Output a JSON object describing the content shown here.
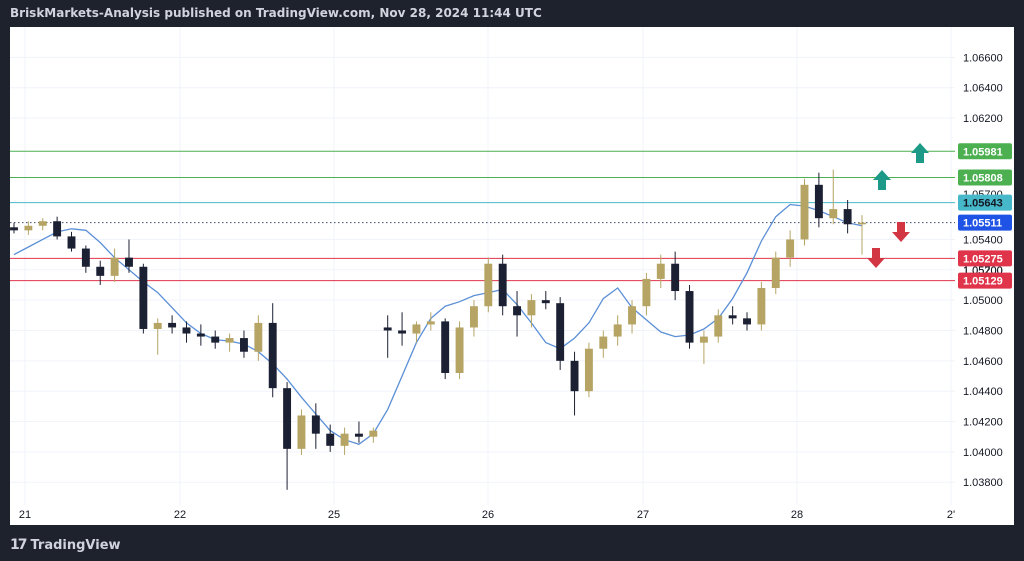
{
  "header": {
    "publisher_line": "BriskMarkets-Analysis published on TradingView.com, Nov 28, 2024 11:44 UTC"
  },
  "footer": {
    "logo_mark": "17",
    "brand": "TradingView"
  },
  "colors": {
    "bull": "#b5a463",
    "bear": "#1c2033",
    "ma": "#5b8fd6",
    "grid": "#f0f3fa",
    "green_line": "#4caf50",
    "cyan_line": "#47b8c9",
    "red_line": "#e0344a",
    "teal_arrow": "#1c9a87",
    "red_arrow": "#d33643",
    "current_badge": "#1e53e5"
  },
  "chart_data": {
    "type": "candlestick",
    "y_axis": {
      "range": [
        1.0365,
        1.068
      ],
      "ticks": [
        "1.06600",
        "1.06400",
        "1.06200",
        "1.05400",
        "1.05200",
        "1.05000",
        "1.04800",
        "1.04600",
        "1.04400",
        "1.04200",
        "1.04000",
        "1.03800"
      ],
      "obscured_tick": "1.05700"
    },
    "x_axis": {
      "ticks": [
        "21",
        "22",
        "25",
        "26",
        "27",
        "28",
        "2'"
      ]
    },
    "levels": [
      {
        "value": 1.05981,
        "label": "1.05981",
        "kind": "resistance"
      },
      {
        "value": 1.05808,
        "label": "1.05808",
        "kind": "resistance"
      },
      {
        "value": 1.05643,
        "label": "1.05643",
        "kind": "pivot"
      },
      {
        "value": 1.05511,
        "label": "1.05511",
        "kind": "current"
      },
      {
        "value": 1.05275,
        "label": "1.05275",
        "kind": "support"
      },
      {
        "value": 1.05129,
        "label": "1.05129",
        "kind": "support"
      }
    ],
    "arrows": [
      {
        "direction": "up",
        "target": 1.05981
      },
      {
        "direction": "up",
        "target": 1.05808
      },
      {
        "direction": "down",
        "target": 1.05275
      },
      {
        "direction": "down",
        "target": 1.05129
      }
    ],
    "moving_average": [
      1.053,
      1.0535,
      1.054,
      1.0545,
      1.0547,
      1.0546,
      1.0538,
      1.0528,
      1.052,
      1.0512,
      1.0505,
      1.0495,
      1.0485,
      1.0478,
      1.0474,
      1.0473,
      1.0471,
      1.0466,
      1.0458,
      1.0448,
      1.0436,
      1.0425,
      1.0414,
      1.0408,
      1.0405,
      1.0412,
      1.0428,
      1.045,
      1.0472,
      1.0488,
      1.0496,
      1.0499,
      1.0503,
      1.0505,
      1.0507,
      1.0497,
      1.0485,
      1.0472,
      1.0468,
      1.0475,
      1.0485,
      1.0501,
      1.0508,
      1.0495,
      1.0487,
      1.0479,
      1.0476,
      1.0477,
      1.0481,
      1.0488,
      1.0501,
      1.0518,
      1.0539,
      1.0555,
      1.0563,
      1.0562,
      1.0559,
      1.0555,
      1.0551,
      1.0549
    ],
    "candles": [
      [
        1.0548,
        1.0551,
        1.0544,
        1.0546
      ],
      [
        1.0546,
        1.0552,
        1.0543,
        1.0549
      ],
      [
        1.0549,
        1.0554,
        1.0546,
        1.0552
      ],
      [
        1.0552,
        1.0555,
        1.054,
        1.0542
      ],
      [
        1.0542,
        1.0545,
        1.0532,
        1.0534
      ],
      [
        1.0534,
        1.0536,
        1.0518,
        1.0522
      ],
      [
        1.0522,
        1.0526,
        1.051,
        1.0516
      ],
      [
        1.0516,
        1.0534,
        1.0512,
        1.0528
      ],
      [
        1.0528,
        1.054,
        1.0518,
        1.0522
      ],
      [
        1.0522,
        1.0524,
        1.0478,
        1.0481
      ],
      [
        1.0481,
        1.0488,
        1.0464,
        1.0485
      ],
      [
        1.0485,
        1.049,
        1.0478,
        1.0482
      ],
      [
        1.0482,
        1.0486,
        1.0472,
        1.0478
      ],
      [
        1.0478,
        1.0484,
        1.047,
        1.0476
      ],
      [
        1.0476,
        1.048,
        1.0468,
        1.0472
      ],
      [
        1.0472,
        1.0478,
        1.0466,
        1.0475
      ],
      [
        1.0475,
        1.048,
        1.0462,
        1.0466
      ],
      [
        1.0466,
        1.049,
        1.046,
        1.0485
      ],
      [
        1.0485,
        1.0498,
        1.0436,
        1.0442
      ],
      [
        1.0442,
        1.0446,
        1.0375,
        1.0402
      ],
      [
        1.0402,
        1.0428,
        1.0398,
        1.0424
      ],
      [
        1.0424,
        1.0432,
        1.0402,
        1.0412
      ],
      [
        1.0412,
        1.0418,
        1.04,
        1.0404
      ],
      [
        1.0404,
        1.0416,
        1.0398,
        1.0412
      ],
      [
        1.0412,
        1.042,
        1.0406,
        1.041
      ],
      [
        1.041,
        1.0416,
        1.0406,
        1.0414
      ],
      [
        1.0482,
        1.049,
        1.0462,
        1.048
      ],
      [
        1.048,
        1.0492,
        1.047,
        1.0478
      ],
      [
        1.0478,
        1.0486,
        1.0472,
        1.0484
      ],
      [
        1.0484,
        1.0492,
        1.048,
        1.0486
      ],
      [
        1.0486,
        1.0488,
        1.0448,
        1.0452
      ],
      [
        1.0452,
        1.0486,
        1.0448,
        1.0482
      ],
      [
        1.0482,
        1.05,
        1.0476,
        1.0496
      ],
      [
        1.0496,
        1.0528,
        1.0492,
        1.0524
      ],
      [
        1.0524,
        1.053,
        1.049,
        1.0496
      ],
      [
        1.0496,
        1.0506,
        1.0476,
        1.049
      ],
      [
        1.049,
        1.0504,
        1.0482,
        1.05
      ],
      [
        1.05,
        1.0506,
        1.0494,
        1.0498
      ],
      [
        1.0498,
        1.0502,
        1.0454,
        1.046
      ],
      [
        1.046,
        1.0466,
        1.0424,
        1.044
      ],
      [
        1.044,
        1.0472,
        1.0436,
        1.0468
      ],
      [
        1.0468,
        1.048,
        1.0462,
        1.0476
      ],
      [
        1.0476,
        1.049,
        1.047,
        1.0484
      ],
      [
        1.0484,
        1.05,
        1.0478,
        1.0496
      ],
      [
        1.0496,
        1.0518,
        1.049,
        1.0514
      ],
      [
        1.0514,
        1.053,
        1.0508,
        1.0524
      ],
      [
        1.0524,
        1.0532,
        1.05,
        1.0506
      ],
      [
        1.0506,
        1.051,
        1.0468,
        1.0472
      ],
      [
        1.0472,
        1.048,
        1.0458,
        1.0476
      ],
      [
        1.0476,
        1.0494,
        1.0472,
        1.049
      ],
      [
        1.049,
        1.0496,
        1.0484,
        1.0488
      ],
      [
        1.0488,
        1.0492,
        1.048,
        1.0484
      ],
      [
        1.0484,
        1.0512,
        1.048,
        1.0508
      ],
      [
        1.0508,
        1.0532,
        1.0504,
        1.0528
      ],
      [
        1.0528,
        1.0546,
        1.0522,
        1.054
      ],
      [
        1.054,
        1.058,
        1.0536,
        1.0576
      ],
      [
        1.0576,
        1.0584,
        1.0548,
        1.0554
      ],
      [
        1.0554,
        1.0586,
        1.055,
        1.056
      ],
      [
        1.056,
        1.0566,
        1.0544,
        1.055
      ],
      [
        1.055,
        1.0556,
        1.053,
        1.0551
      ]
    ]
  }
}
